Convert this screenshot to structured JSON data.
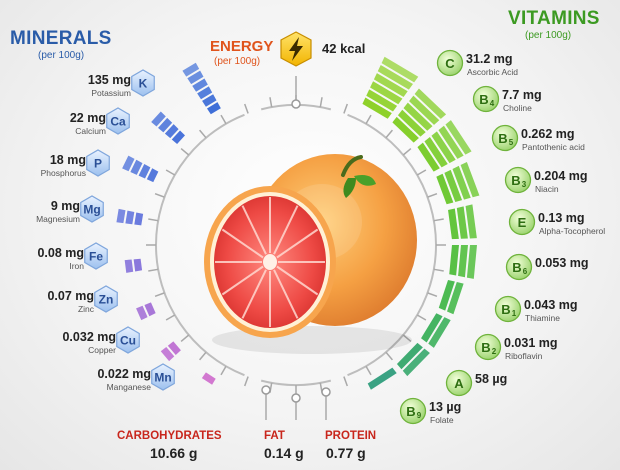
{
  "headers": {
    "minerals": "MINERALS",
    "minerals_sub": "(per 100g)",
    "vitamins": "VITAMINS",
    "vitamins_sub": "(per 100g)",
    "energy": "ENERGY",
    "energy_sub": "(per 100g)",
    "energy_value": "42 kcal"
  },
  "minerals": [
    {
      "symbol": "K",
      "value": "135 mg",
      "name": "Potassium"
    },
    {
      "symbol": "Ca",
      "value": "22 mg",
      "name": "Calcium"
    },
    {
      "symbol": "P",
      "value": "18 mg",
      "name": "Phosphorus"
    },
    {
      "symbol": "Mg",
      "value": "9 mg",
      "name": "Magnesium"
    },
    {
      "symbol": "Fe",
      "value": "0.08 mg",
      "name": "Iron"
    },
    {
      "symbol": "Zn",
      "value": "0.07 mg",
      "name": "Zinc"
    },
    {
      "symbol": "Cu",
      "value": "0.032 mg",
      "name": "Copper"
    },
    {
      "symbol": "Mn",
      "value": "0.022 mg",
      "name": "Manganese"
    }
  ],
  "vitamins": [
    {
      "symbol": "C",
      "value": "31.2 mg",
      "name": "Ascorbic Acid"
    },
    {
      "symbol": "B4",
      "value": "7.7 mg",
      "name": "Choline"
    },
    {
      "symbol": "B5",
      "value": "0.262 mg",
      "name": "Pantothenic acid"
    },
    {
      "symbol": "B3",
      "value": "0.204 mg",
      "name": "Niacin"
    },
    {
      "symbol": "E",
      "value": "0.13 mg",
      "name": "Alpha-Tocopherol"
    },
    {
      "symbol": "B6",
      "value": "0.053 mg",
      "name": ""
    },
    {
      "symbol": "B1",
      "value": "0.043 mg",
      "name": "Thiamine"
    },
    {
      "symbol": "B2",
      "value": "0.031 mg",
      "name": "Riboflavin"
    },
    {
      "symbol": "A",
      "value": "58 µg",
      "name": ""
    },
    {
      "symbol": "B9",
      "value": "13 µg",
      "name": "Folate"
    }
  ],
  "macros": [
    {
      "name": "CARBOHYDRATES",
      "value": "10.66 g"
    },
    {
      "name": "FAT",
      "value": "0.14 g"
    },
    {
      "name": "PROTEIN",
      "value": "0.77 g"
    }
  ],
  "colors": {
    "minerals_header": "#2a5ca8",
    "vitamins_header": "#3c9a22",
    "energy_header": "#e0541c",
    "macro_header": "#c8261c",
    "fruit_flesh": "#e8413f",
    "fruit_peel": "#f6a043"
  },
  "icons": [
    "lightning-icon",
    "grapefruit-illustration"
  ]
}
